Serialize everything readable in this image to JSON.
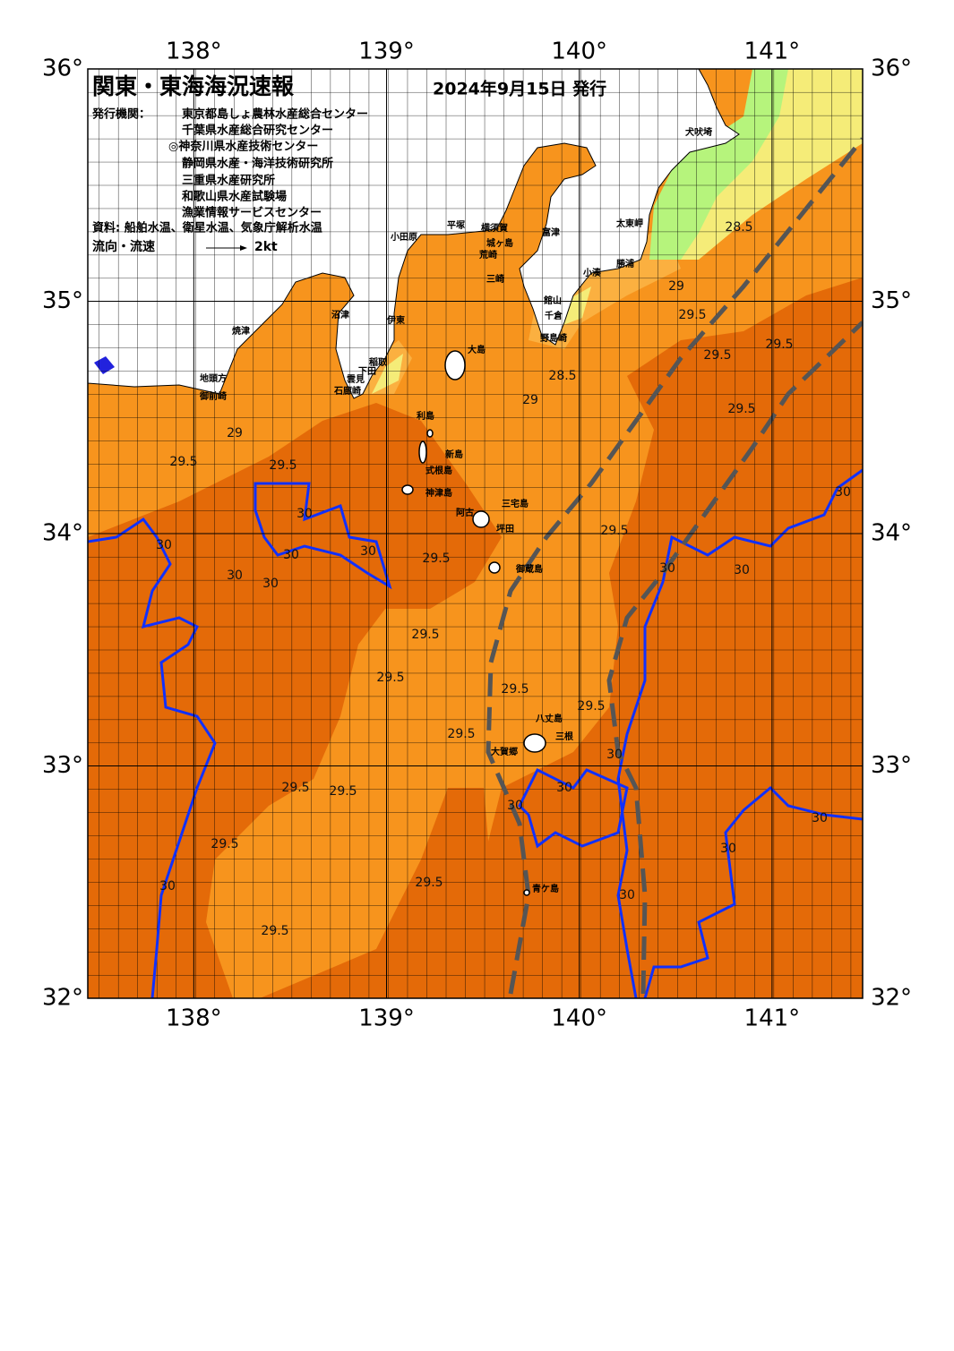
{
  "header": {
    "title": "関東・東海海況速報",
    "date": "2024年9月15日 発行",
    "issuer_label": "発行機関：",
    "issuers": [
      "東京都島しょ農林水産総合センター",
      "千葉県水産総合研究センター",
      "◎神奈川県水産技術センター",
      "静岡県水産・海洋技術研究所",
      "三重県水産研究所",
      "和歌山県水産試験場",
      "漁業情報サービスセンター"
    ],
    "source": "資料: 船舶水温、衛星水温、気象庁解析水温",
    "legend_label": "流向・流速",
    "legend_speed": "2kt"
  },
  "map": {
    "xlim": [
      137.45,
      141.47
    ],
    "ylim": [
      32,
      36
    ],
    "xticks": [
      {
        "value": 138,
        "label": "138°"
      },
      {
        "value": 139,
        "label": "139°"
      },
      {
        "value": 140,
        "label": "140°"
      },
      {
        "value": 141,
        "label": "141°"
      }
    ],
    "yticks": [
      {
        "value": 32,
        "label": "32°"
      },
      {
        "value": 33,
        "label": "33°"
      },
      {
        "value": 34,
        "label": "34°"
      },
      {
        "value": 35,
        "label": "35°"
      },
      {
        "value": 36,
        "label": "36°"
      }
    ],
    "places": [
      "犬吠埼",
      "太東岬",
      "勝浦",
      "小湊",
      "富津",
      "横須賀",
      "平塚",
      "小田原",
      "城ヶ島",
      "荒崎",
      "三崎",
      "館山",
      "千倉",
      "野島崎",
      "大島",
      "沼津",
      "伊東",
      "焼津",
      "稲取",
      "下田",
      "雲見",
      "石廊崎",
      "地頭方",
      "御前崎",
      "利島",
      "新島",
      "式根島",
      "神津島",
      "三宅島",
      "阿古",
      "坪田",
      "御蔵島",
      "八丈島",
      "三根",
      "大賀郷",
      "青ケ島"
    ],
    "contour_labels": [
      28.5,
      29,
      29.5,
      29.5,
      29.5,
      29.5,
      28.5,
      29,
      29,
      29.5,
      29.5,
      29.5,
      29.5,
      29.5,
      29.5,
      29.5,
      29.5,
      29.5,
      29.5,
      29.5,
      29.5,
      29.5,
      29.5,
      30,
      30,
      30,
      30,
      30,
      30,
      30,
      30,
      30,
      30,
      30,
      30,
      30,
      30,
      30,
      30
    ]
  }
}
